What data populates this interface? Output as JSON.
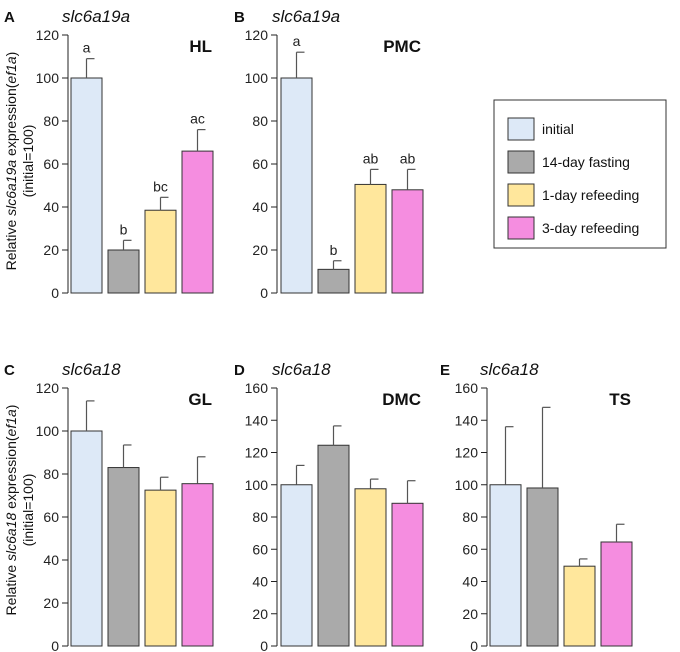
{
  "colors": {
    "initial": "#dde9f7",
    "fasting": "#aaaaaa",
    "refeed1": "#ffe79c",
    "refeed3": "#f58de0",
    "stroke": "#333333"
  },
  "legend": {
    "items": [
      {
        "label": "initial",
        "color_key": "initial"
      },
      {
        "label": "14-day fasting",
        "color_key": "fasting"
      },
      {
        "label": "1-day refeeding",
        "color_key": "refeed1"
      },
      {
        "label": "3-day refeeding",
        "color_key": "refeed3"
      }
    ]
  },
  "y_axis": {
    "top_label_prefix": "Relative ",
    "top_label_gene": "slc6a19a",
    "top_label_mid": " expression(",
    "top_label_ref": "ef1a",
    "top_label_end": ")",
    "bottom_label_prefix": "Relative ",
    "bottom_label_gene": "slc6a18",
    "bottom_label_mid": " expression(",
    "bottom_label_ref": "ef1a",
    "bottom_label_end": ")",
    "sub_label": "(initial=100)"
  },
  "chart_data": [
    {
      "type": "bar",
      "panel": "A",
      "gene": "slc6a19a",
      "tissue": "HL",
      "categories": [
        "initial",
        "14-day fasting",
        "1-day refeeding",
        "3-day refeeding"
      ],
      "values": [
        100,
        20,
        38.5,
        66
      ],
      "errors": [
        9,
        4.5,
        6,
        10
      ],
      "letters": [
        "a",
        "b",
        "bc",
        "ac"
      ],
      "ylim": [
        0,
        120
      ],
      "yticks": [
        0,
        20,
        40,
        60,
        80,
        100,
        120
      ]
    },
    {
      "type": "bar",
      "panel": "B",
      "gene": "slc6a19a",
      "tissue": "PMC",
      "categories": [
        "initial",
        "14-day fasting",
        "1-day refeeding",
        "3-day refeeding"
      ],
      "values": [
        100,
        11,
        50.5,
        48
      ],
      "errors": [
        12,
        4,
        7,
        9.5
      ],
      "letters": [
        "a",
        "b",
        "ab",
        "ab"
      ],
      "ylim": [
        0,
        120
      ],
      "yticks": [
        0,
        20,
        40,
        60,
        80,
        100,
        120
      ]
    },
    {
      "type": "bar",
      "panel": "C",
      "gene": "slc6a18",
      "tissue": "GL",
      "categories": [
        "initial",
        "14-day fasting",
        "1-day refeeding",
        "3-day refeeding"
      ],
      "values": [
        100,
        83,
        72.5,
        75.5
      ],
      "errors": [
        14,
        10.5,
        6,
        12.5
      ],
      "letters": [
        "",
        "",
        "",
        ""
      ],
      "ylim": [
        0,
        120
      ],
      "yticks": [
        0,
        20,
        40,
        60,
        80,
        100,
        120
      ]
    },
    {
      "type": "bar",
      "panel": "D",
      "gene": "slc6a18",
      "tissue": "DMC",
      "categories": [
        "initial",
        "14-day fasting",
        "1-day refeeding",
        "3-day refeeding"
      ],
      "values": [
        100,
        124.5,
        97.5,
        88.5
      ],
      "errors": [
        12,
        12,
        6,
        14
      ],
      "letters": [
        "",
        "",
        "",
        ""
      ],
      "ylim": [
        0,
        160
      ],
      "yticks": [
        0,
        20,
        40,
        60,
        80,
        100,
        120,
        140,
        160
      ]
    },
    {
      "type": "bar",
      "panel": "E",
      "gene": "slc6a18",
      "tissue": "TS",
      "categories": [
        "initial",
        "14-day fasting",
        "1-day refeeding",
        "3-day refeeding"
      ],
      "values": [
        100,
        98,
        49.5,
        64.5
      ],
      "errors": [
        36,
        50,
        4.5,
        11
      ],
      "letters": [
        "",
        "",
        "",
        ""
      ],
      "ylim": [
        0,
        160
      ],
      "yticks": [
        0,
        20,
        40,
        60,
        80,
        100,
        120,
        140,
        160
      ]
    }
  ]
}
